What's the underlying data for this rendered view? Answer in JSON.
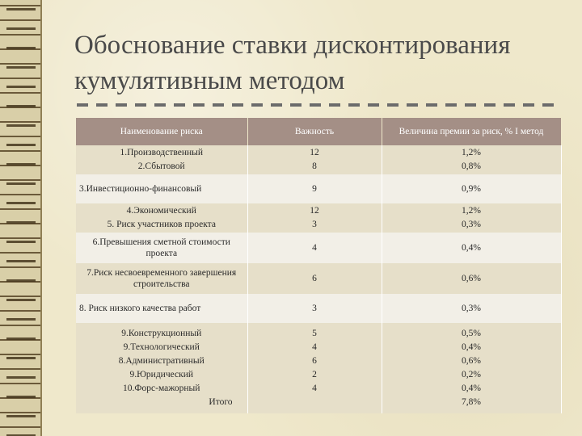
{
  "title": "Обоснование ставки дисконтирования кумулятивным методом",
  "table": {
    "headers": [
      "Наименование риска",
      "Важность",
      "Величина премии за риск, % I метод"
    ],
    "rows": [
      {
        "name": [
          "1.Производственный",
          "2.Сбытовой"
        ],
        "weight": [
          "12",
          "8"
        ],
        "premium": [
          "1,2%",
          "0,8%"
        ]
      },
      {
        "name": [
          "3.Инвестиционно-финансовый"
        ],
        "weight": [
          "9"
        ],
        "premium": [
          "0,9%"
        ]
      },
      {
        "name": [
          "4.Экономический",
          "5. Риск участников проекта"
        ],
        "weight": [
          "12",
          "3"
        ],
        "premium": [
          "1,2%",
          "0,3%"
        ]
      },
      {
        "name": [
          "6.Превышения сметной стоимости проекта"
        ],
        "weight": [
          "4"
        ],
        "premium": [
          "0,4%"
        ]
      },
      {
        "name": [
          "7.Риск несвоевременного завершения строительства"
        ],
        "weight": [
          "6"
        ],
        "premium": [
          "0,6%"
        ]
      },
      {
        "name": [
          "8. Риск низкого качества работ"
        ],
        "weight": [
          "3"
        ],
        "premium": [
          "0,3%"
        ]
      },
      {
        "name": [
          "9.Конструкционный",
          "9.Технологический",
          "8.Административный",
          "9.Юридический",
          "10.Форс-мажорный",
          "Итого"
        ],
        "weight": [
          "5",
          "4",
          "6",
          "2",
          "4",
          ""
        ],
        "premium": [
          "0,5%",
          "0,4%",
          "0,6%",
          "0,2%",
          "0,4%",
          "7,8%"
        ]
      }
    ]
  },
  "colors": {
    "header_bg": "#a48f86",
    "row_odd": "#e6dfc9",
    "row_even": "#f2efe7",
    "title": "#4a4a4a"
  }
}
